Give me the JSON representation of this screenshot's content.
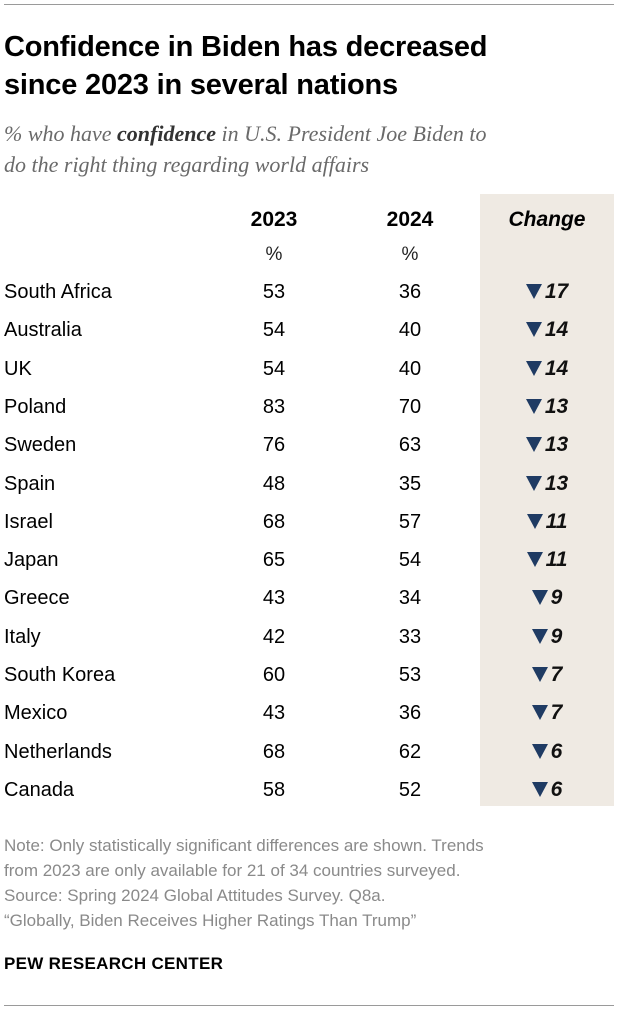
{
  "title_lines": [
    "Confidence in Biden has decreased",
    "since 2023 in several nations"
  ],
  "subtitle": {
    "pre": "% who have ",
    "emph": "confidence",
    "post_line1": " in U.S. President Joe Biden to",
    "line2": "do the right thing regarding world affairs"
  },
  "columns": {
    "y2023": "2023",
    "y2024": "2024",
    "change": "Change",
    "unit": "%"
  },
  "chart_data": {
    "type": "table",
    "title": "Confidence in Biden has decreased since 2023 in several nations",
    "columns": [
      "2023",
      "2024",
      "Change"
    ],
    "rows": [
      {
        "country": "South Africa",
        "v2023": 53,
        "v2024": 36,
        "change": "17",
        "direction": "down"
      },
      {
        "country": "Australia",
        "v2023": 54,
        "v2024": 40,
        "change": "14",
        "direction": "down"
      },
      {
        "country": "UK",
        "v2023": 54,
        "v2024": 40,
        "change": "14",
        "direction": "down"
      },
      {
        "country": "Poland",
        "v2023": 83,
        "v2024": 70,
        "change": "13",
        "direction": "down"
      },
      {
        "country": "Sweden",
        "v2023": 76,
        "v2024": 63,
        "change": "13",
        "direction": "down"
      },
      {
        "country": "Spain",
        "v2023": 48,
        "v2024": 35,
        "change": "13",
        "direction": "down"
      },
      {
        "country": "Israel",
        "v2023": 68,
        "v2024": 57,
        "change": "11",
        "direction": "down"
      },
      {
        "country": "Japan",
        "v2023": 65,
        "v2024": 54,
        "change": "11",
        "direction": "down"
      },
      {
        "country": "Greece",
        "v2023": 43,
        "v2024": 34,
        "change": "9",
        "direction": "down"
      },
      {
        "country": "Italy",
        "v2023": 42,
        "v2024": 33,
        "change": "9",
        "direction": "down"
      },
      {
        "country": "South Korea",
        "v2023": 60,
        "v2024": 53,
        "change": "7",
        "direction": "down"
      },
      {
        "country": "Mexico",
        "v2023": 43,
        "v2024": 36,
        "change": "7",
        "direction": "down"
      },
      {
        "country": "Netherlands",
        "v2023": 68,
        "v2024": 62,
        "change": "6",
        "direction": "down"
      },
      {
        "country": "Canada",
        "v2023": 58,
        "v2024": 52,
        "change": "6",
        "direction": "down"
      }
    ]
  },
  "note_lines": [
    "Note: Only statistically significant differences are shown. Trends",
    "from 2023 are only available for 21 of 34 countries surveyed.",
    "Source: Spring 2024 Global Attitudes Survey. Q8a.",
    "“Globally, Biden Receives Higher Ratings Than Trump”"
  ],
  "brand": "PEW RESEARCH CENTER",
  "colors": {
    "arrow": "#1f3b63",
    "band": "#efeae3",
    "muted": "#8a8a8a"
  }
}
